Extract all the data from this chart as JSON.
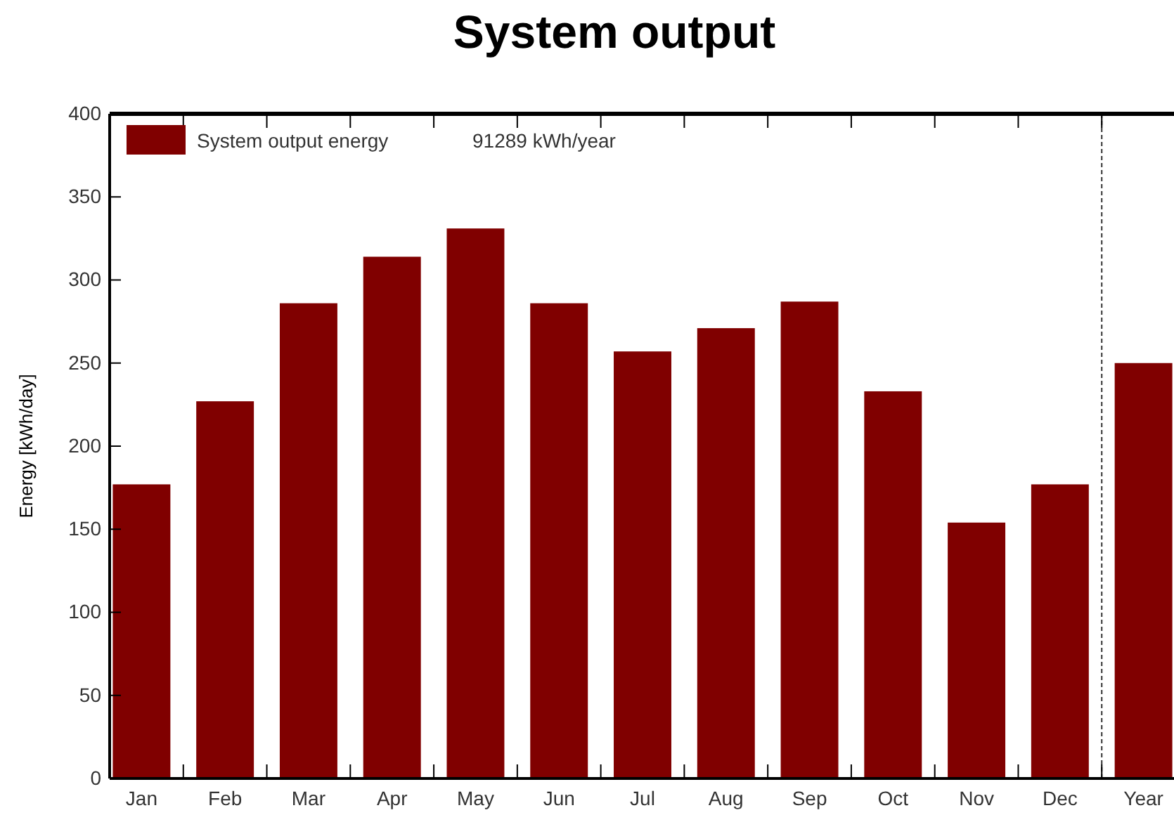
{
  "chart_data": {
    "type": "bar",
    "title": "System output",
    "ylabel": "Energy [kWh/day]",
    "categories": [
      "Jan",
      "Feb",
      "Mar",
      "Apr",
      "May",
      "Jun",
      "Jul",
      "Aug",
      "Sep",
      "Oct",
      "Nov",
      "Dec",
      "Year"
    ],
    "series": [
      {
        "name": "System output energy",
        "color": "#800000",
        "values": [
          177,
          227,
          286,
          314,
          331,
          286,
          257,
          271,
          287,
          233,
          154,
          177,
          250
        ]
      }
    ],
    "annotations": [
      "91289 kWh/year"
    ],
    "ylim": [
      0,
      400
    ],
    "yticks": [
      0,
      50,
      100,
      150,
      200,
      250,
      300,
      350,
      400
    ],
    "grid": false,
    "legend": "top left"
  }
}
